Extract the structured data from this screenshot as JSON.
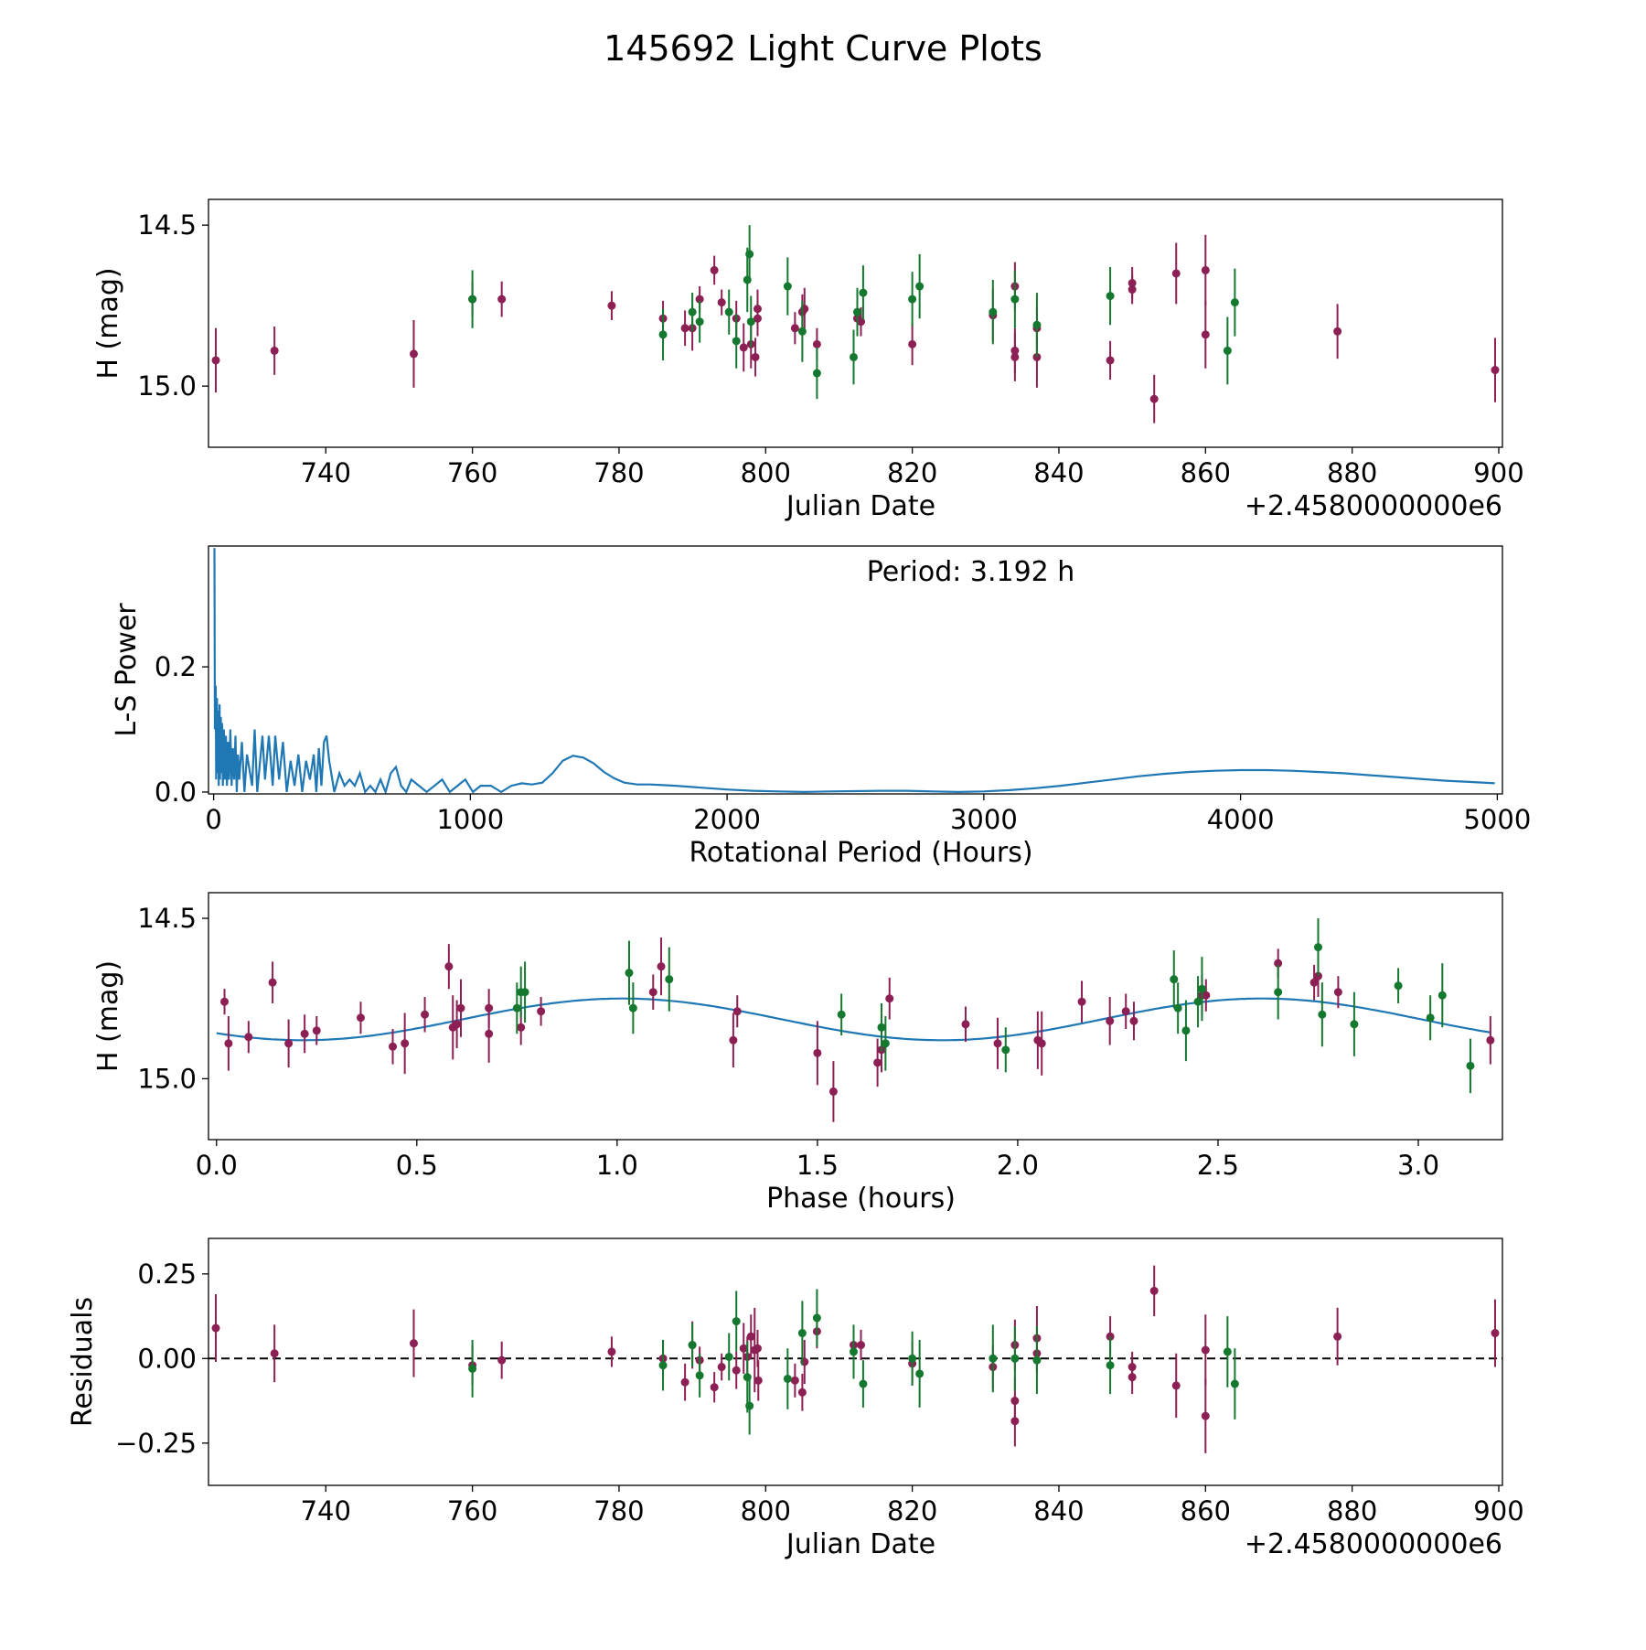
{
  "figure_title": "145692 Light Curve Plots",
  "colors": {
    "obs_a": "#8c1f54",
    "obs_b": "#15782f",
    "model": "#1f77b4",
    "axis": "#000000"
  },
  "chart_data": [
    {
      "id": "lightcurve",
      "type": "scatter",
      "xlabel": "Julian Date",
      "ylabel": "H (mag)",
      "offset_text": "+2.4580000000e6",
      "xlim": [
        724,
        900.5
      ],
      "ylim": [
        15.19,
        14.42
      ],
      "y_inverted": true,
      "xticks": [
        740,
        760,
        780,
        800,
        820,
        840,
        860,
        880,
        900
      ],
      "yticks": [
        15.0,
        14.5
      ],
      "ytick_labels": [
        "15.0",
        "14.5"
      ],
      "series": [
        {
          "name": "Observations (purple)",
          "color": "obs_a",
          "x": [
            725,
            733,
            752,
            760,
            764,
            779,
            786,
            789,
            790,
            791,
            793,
            794,
            796,
            797,
            798,
            798.6,
            798.9,
            798.9,
            804,
            805,
            805.3,
            807,
            812.5,
            813,
            820,
            831,
            834,
            834,
            834,
            837,
            837,
            847,
            850,
            850,
            853,
            856,
            860,
            860,
            878,
            899.5
          ],
          "y": [
            14.92,
            14.89,
            14.9,
            14.73,
            14.73,
            14.75,
            14.79,
            14.82,
            14.82,
            14.73,
            14.64,
            14.74,
            14.79,
            14.88,
            14.87,
            14.91,
            14.79,
            14.76,
            14.82,
            14.77,
            14.76,
            14.87,
            14.79,
            14.8,
            14.87,
            14.78,
            14.91,
            14.89,
            14.69,
            14.82,
            14.91,
            14.92,
            14.7,
            14.68,
            15.04,
            14.65,
            14.64,
            14.84,
            14.83,
            14.95
          ],
          "err": [
            0.2,
            0.15,
            0.21,
            0.11,
            0.11,
            0.09,
            0.11,
            0.11,
            0.14,
            0.08,
            0.09,
            0.08,
            0.11,
            0.15,
            0.15,
            0.12,
            0.11,
            0.12,
            0.1,
            0.11,
            0.13,
            0.1,
            0.1,
            0.09,
            0.13,
            0.16,
            0.15,
            0.14,
            0.15,
            0.13,
            0.19,
            0.12,
            0.09,
            0.1,
            0.15,
            0.19,
            0.22,
            0.21,
            0.17,
            0.2
          ]
        },
        {
          "name": "Observations (green)",
          "color": "obs_b",
          "x": [
            760,
            786,
            790,
            791,
            795,
            796,
            797.5,
            797.8,
            798,
            803,
            805,
            807,
            812,
            812.5,
            813.3,
            820,
            821,
            831,
            834,
            837,
            847,
            863,
            864
          ],
          "y": [
            14.73,
            14.84,
            14.77,
            14.8,
            14.77,
            14.86,
            14.67,
            14.59,
            14.8,
            14.69,
            14.83,
            14.96,
            14.91,
            14.77,
            14.71,
            14.73,
            14.69,
            14.77,
            14.73,
            14.81,
            14.72,
            14.89,
            14.74
          ],
          "err": [
            0.18,
            0.16,
            0.12,
            0.13,
            0.14,
            0.17,
            0.2,
            0.18,
            0.16,
            0.18,
            0.19,
            0.16,
            0.17,
            0.15,
            0.17,
            0.17,
            0.2,
            0.2,
            0.18,
            0.2,
            0.18,
            0.21,
            0.21
          ]
        }
      ]
    },
    {
      "id": "periodogram",
      "type": "line",
      "xlabel": "Rotational Period (Hours)",
      "ylabel": "L-S Power",
      "annotation": "Period: 3.192 h",
      "xlim": [
        -20,
        5020
      ],
      "ylim": [
        -0.003,
        0.393
      ],
      "xticks": [
        0,
        1000,
        2000,
        3000,
        4000,
        5000
      ],
      "yticks": [
        0.0,
        0.2
      ],
      "ytick_labels": [
        "0.0",
        "0.2"
      ],
      "series": [
        {
          "name": "L-S periodogram",
          "color": "model",
          "x": [
            3,
            5,
            8,
            10,
            13,
            15,
            18,
            20,
            23,
            25,
            28,
            30,
            33,
            36,
            40,
            44,
            48,
            52,
            56,
            60,
            65,
            70,
            75,
            80,
            85,
            90,
            95,
            100,
            110,
            120,
            130,
            150,
            160,
            170,
            190,
            200,
            215,
            230,
            240,
            255,
            270,
            285,
            300,
            315,
            330,
            345,
            360,
            375,
            390,
            400,
            410,
            420,
            430,
            440,
            450,
            470,
            490,
            510,
            530,
            550,
            570,
            590,
            610,
            630,
            650,
            670,
            690,
            710,
            730,
            750,
            770,
            800,
            830,
            860,
            890,
            920,
            950,
            980,
            1010,
            1040,
            1080,
            1120,
            1160,
            1200,
            1240,
            1280,
            1320,
            1360,
            1400,
            1440,
            1480,
            1520,
            1560,
            1600,
            1650,
            1700,
            1750,
            1800,
            1900,
            2000,
            2100,
            2200,
            2300,
            2400,
            2600,
            2700,
            2800,
            2900,
            3000,
            3100,
            3200,
            3300,
            3400,
            3500,
            3600,
            3700,
            3800,
            3900,
            4000,
            4100,
            4200,
            4300,
            4400,
            4500,
            4600,
            4700,
            4800,
            4900,
            4990
          ],
          "y": [
            0.39,
            0.1,
            0.17,
            0.02,
            0.15,
            0.03,
            0.13,
            0.01,
            0.14,
            0.02,
            0.12,
            0.03,
            0.11,
            0.01,
            0.1,
            0.02,
            0.09,
            0.01,
            0.08,
            0.02,
            0.1,
            0.01,
            0.07,
            0.02,
            0.09,
            0.0,
            0.06,
            0.02,
            0.08,
            0.0,
            0.06,
            0.01,
            0.1,
            0.0,
            0.09,
            0.02,
            0.09,
            0.01,
            0.09,
            0.02,
            0.08,
            0.0,
            0.05,
            0.01,
            0.06,
            0.0,
            0.05,
            0.02,
            0.06,
            0.0,
            0.07,
            0.01,
            0.08,
            0.09,
            0.05,
            0.0,
            0.03,
            0.01,
            0.02,
            0.01,
            0.03,
            0.0,
            0.01,
            0.0,
            0.02,
            0.0,
            0.03,
            0.04,
            0.01,
            0.0,
            0.02,
            0.01,
            0.0,
            0.01,
            0.02,
            0.0,
            0.01,
            0.02,
            0.0,
            0.01,
            0.01,
            0.0,
            0.01,
            0.014,
            0.012,
            0.015,
            0.03,
            0.05,
            0.058,
            0.055,
            0.046,
            0.032,
            0.022,
            0.015,
            0.012,
            0.012,
            0.011,
            0.01,
            0.007,
            0.004,
            0.002,
            0.001,
            0.0,
            0.001,
            0.002,
            0.002,
            0.001,
            0.0,
            0.001,
            0.003,
            0.006,
            0.01,
            0.015,
            0.02,
            0.025,
            0.029,
            0.032,
            0.034,
            0.035,
            0.035,
            0.034,
            0.032,
            0.03,
            0.027,
            0.024,
            0.021,
            0.018,
            0.016,
            0.014
          ]
        }
      ]
    },
    {
      "id": "phased",
      "type": "scatter",
      "xlabel": "Phase (hours)",
      "ylabel": "H (mag)",
      "xlim": [
        -0.02,
        3.21
      ],
      "ylim": [
        15.19,
        14.42
      ],
      "y_inverted": true,
      "xticks": [
        0.0,
        0.5,
        1.0,
        1.5,
        2.0,
        2.5,
        3.0
      ],
      "xtick_labels": [
        "0.0",
        "0.5",
        "1.0",
        "1.5",
        "2.0",
        "2.5",
        "3.0"
      ],
      "yticks": [
        15.0,
        14.5
      ],
      "ytick_labels": [
        "15.0",
        "14.5"
      ],
      "model": {
        "type": "sinusoid",
        "mean": 14.815,
        "amplitude": 0.065,
        "period": 1.596,
        "peak_phase": 0.215,
        "x_range": [
          0.0,
          3.18
        ],
        "color": "model"
      },
      "series": [
        {
          "name": "Phased observations (purple)",
          "color": "obs_a",
          "x": [
            0.02,
            0.03,
            0.08,
            0.14,
            0.18,
            0.22,
            0.25,
            0.36,
            0.44,
            0.47,
            0.52,
            0.58,
            0.59,
            0.6,
            0.61,
            0.68,
            0.68,
            0.76,
            0.81,
            1.09,
            1.11,
            1.29,
            1.3,
            1.5,
            1.54,
            1.65,
            1.66,
            1.68,
            1.87,
            1.95,
            2.05,
            2.06,
            2.16,
            2.23,
            2.27,
            2.29,
            2.46,
            2.47,
            2.65,
            2.74,
            2.75,
            2.8,
            3.18
          ],
          "y": [
            14.76,
            14.89,
            14.87,
            14.7,
            14.89,
            14.86,
            14.85,
            14.81,
            14.9,
            14.89,
            14.8,
            14.65,
            14.84,
            14.83,
            14.78,
            14.78,
            14.86,
            14.84,
            14.79,
            14.73,
            14.65,
            14.88,
            14.79,
            14.92,
            15.04,
            14.95,
            14.91,
            14.75,
            14.83,
            14.89,
            14.88,
            14.89,
            14.76,
            14.82,
            14.79,
            14.82,
            14.74,
            14.74,
            14.64,
            14.7,
            14.68,
            14.73,
            14.88
          ],
          "err": [
            0.08,
            0.17,
            0.1,
            0.13,
            0.15,
            0.12,
            0.09,
            0.1,
            0.11,
            0.19,
            0.11,
            0.14,
            0.2,
            0.15,
            0.18,
            0.12,
            0.18,
            0.11,
            0.09,
            0.11,
            0.18,
            0.17,
            0.1,
            0.2,
            0.19,
            0.15,
            0.14,
            0.13,
            0.11,
            0.16,
            0.18,
            0.2,
            0.13,
            0.15,
            0.11,
            0.12,
            0.13,
            0.1,
            0.09,
            0.11,
            0.13,
            0.1,
            0.15
          ]
        },
        {
          "name": "Phased observations (green)",
          "color": "obs_b",
          "x": [
            0.75,
            0.76,
            0.77,
            1.03,
            1.04,
            1.13,
            1.56,
            1.66,
            1.67,
            1.97,
            2.39,
            2.4,
            2.42,
            2.45,
            2.46,
            2.65,
            2.75,
            2.76,
            2.84,
            2.95,
            3.03,
            3.06,
            3.13
          ],
          "y": [
            14.78,
            14.73,
            14.73,
            14.67,
            14.78,
            14.69,
            14.8,
            14.84,
            14.89,
            14.91,
            14.69,
            14.78,
            14.85,
            14.76,
            14.72,
            14.73,
            14.59,
            14.8,
            14.83,
            14.71,
            14.81,
            14.74,
            14.96
          ],
          "err": [
            0.16,
            0.16,
            0.19,
            0.2,
            0.16,
            0.2,
            0.13,
            0.15,
            0.17,
            0.14,
            0.18,
            0.16,
            0.19,
            0.16,
            0.2,
            0.17,
            0.18,
            0.2,
            0.2,
            0.11,
            0.14,
            0.2,
            0.17
          ]
        }
      ]
    },
    {
      "id": "residuals",
      "type": "scatter",
      "xlabel": "Julian Date",
      "ylabel": "Residuals",
      "offset_text": "+2.4580000000e6",
      "xlim": [
        724,
        900.5
      ],
      "ylim": [
        -0.375,
        0.355
      ],
      "xticks": [
        740,
        760,
        780,
        800,
        820,
        840,
        860,
        880,
        900
      ],
      "yticks": [
        0.25,
        0.0,
        -0.25
      ],
      "ytick_labels": [
        "0.25",
        "0.00",
        "−0.25"
      ],
      "reference_line": {
        "y": 0.0,
        "style": "dashed"
      },
      "series": [
        {
          "name": "Residuals (purple)",
          "color": "obs_a",
          "x": [
            725,
            733,
            752,
            760,
            764,
            779,
            786,
            789,
            790,
            791,
            793,
            794,
            796,
            797,
            797.5,
            798,
            798.5,
            798.9,
            799,
            804,
            805,
            805.3,
            807,
            812,
            813,
            820,
            831,
            834,
            834,
            834,
            837,
            837,
            847,
            850,
            850,
            853,
            856,
            860,
            860,
            878,
            899.5
          ],
          "y": [
            0.09,
            0.015,
            0.045,
            -0.02,
            -0.005,
            0.02,
            0.0,
            -0.07,
            0.04,
            -0.005,
            -0.085,
            -0.025,
            -0.035,
            0.03,
            0.005,
            0.065,
            0.025,
            0.03,
            -0.065,
            -0.065,
            -0.1,
            -0.01,
            0.08,
            0.04,
            0.04,
            -0.015,
            -0.025,
            0.04,
            -0.125,
            -0.185,
            0.015,
            0.06,
            0.065,
            -0.025,
            -0.055,
            0.2,
            -0.08,
            0.025,
            -0.17,
            0.065,
            0.075
          ],
          "err": [
            0.2,
            0.17,
            0.2,
            0.12,
            0.11,
            0.09,
            0.11,
            0.11,
            0.14,
            0.08,
            0.09,
            0.08,
            0.11,
            0.15,
            0.12,
            0.13,
            0.25,
            0.11,
            0.12,
            0.1,
            0.11,
            0.13,
            0.1,
            0.1,
            0.09,
            0.13,
            0.13,
            0.15,
            0.14,
            0.15,
            0.12,
            0.19,
            0.12,
            0.09,
            0.1,
            0.15,
            0.19,
            0.21,
            0.22,
            0.17,
            0.2
          ]
        },
        {
          "name": "Residuals (green)",
          "color": "obs_b",
          "x": [
            760,
            786,
            790,
            791,
            795,
            796,
            797.5,
            797.8,
            803,
            805,
            807,
            812,
            813.3,
            820,
            821,
            831,
            834,
            837,
            847,
            863,
            864
          ],
          "y": [
            -0.03,
            -0.02,
            0.04,
            -0.05,
            0.005,
            0.11,
            -0.055,
            -0.14,
            -0.06,
            0.075,
            0.12,
            0.02,
            -0.075,
            0.0,
            -0.045,
            0.0,
            0.0,
            -0.005,
            -0.02,
            0.02,
            -0.075
          ],
          "err": [
            0.17,
            0.15,
            0.13,
            0.13,
            0.14,
            0.18,
            0.21,
            0.17,
            0.18,
            0.19,
            0.17,
            0.16,
            0.14,
            0.16,
            0.2,
            0.2,
            0.19,
            0.2,
            0.17,
            0.21,
            0.21
          ]
        }
      ]
    }
  ]
}
